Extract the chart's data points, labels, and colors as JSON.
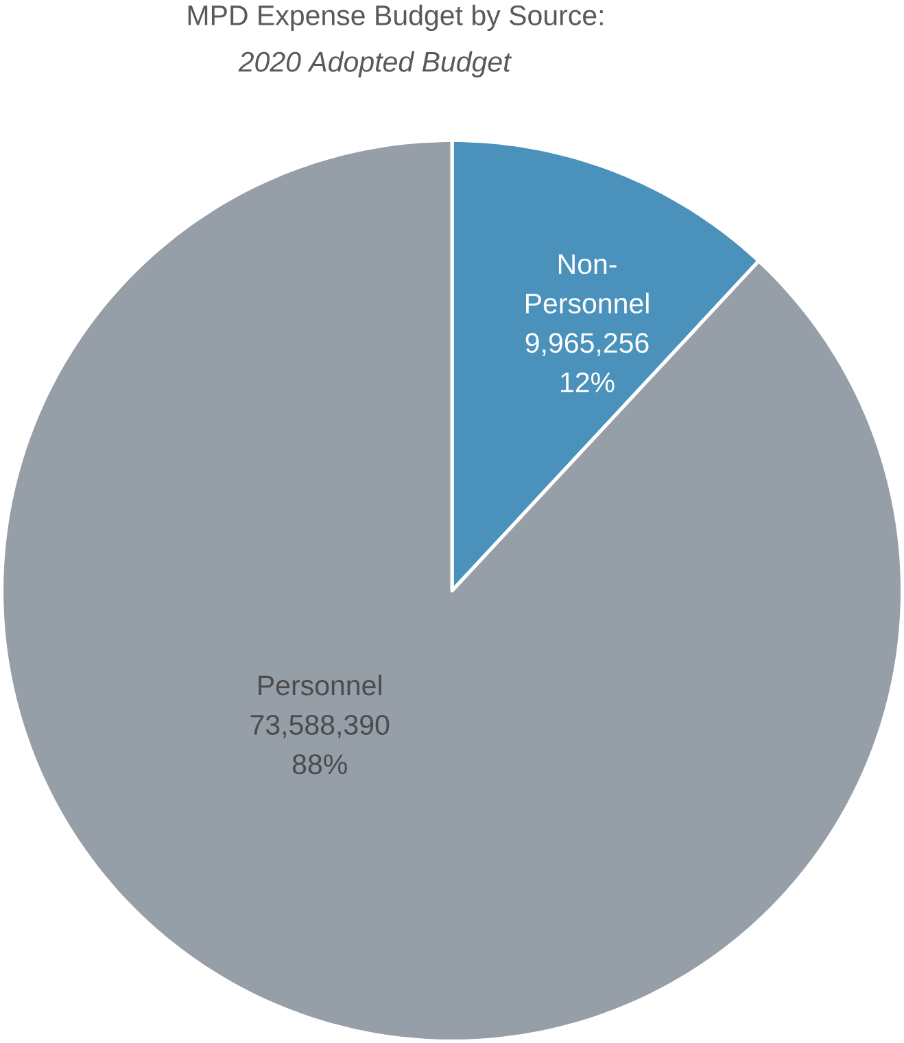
{
  "chart_data": {
    "type": "pie",
    "title": "MPD Expense Budget by Source:",
    "subtitle": "2020 Adopted Budget",
    "categories": [
      "Non-Personnel",
      "Personnel"
    ],
    "values": [
      9965256,
      73588390
    ],
    "value_labels": [
      "9,965,256",
      "73,588,390"
    ],
    "colors": [
      "#4a91bb",
      "#969ea8"
    ],
    "annotations": [
      {
        "text": "12%",
        "x": "Non-Personnel"
      },
      {
        "text": "88%",
        "x": "Personnel"
      }
    ]
  }
}
